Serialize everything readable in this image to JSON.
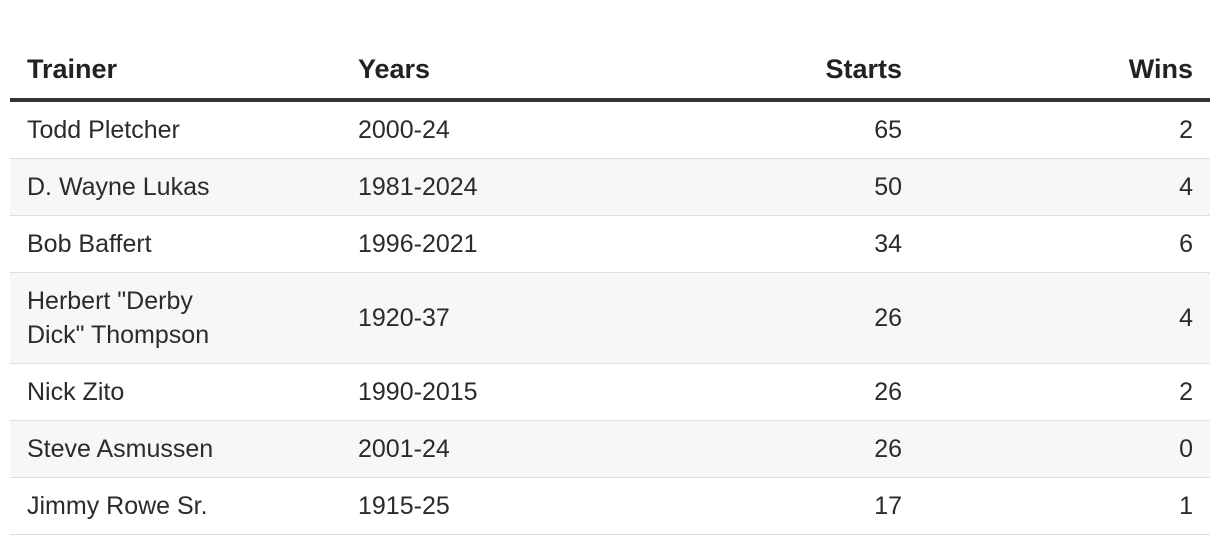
{
  "table": {
    "columns": [
      "Trainer",
      "Years",
      "Starts",
      "Wins"
    ],
    "rows": [
      [
        "Todd Pletcher",
        "2000-24",
        65,
        2
      ],
      [
        "D. Wayne Lukas",
        "1981-2024",
        50,
        4
      ],
      [
        "Bob Baffert",
        "1996-2021",
        34,
        6
      ],
      [
        "Herbert \"Derby Dick\" Thompson",
        "1920-37",
        26,
        4
      ],
      [
        "Nick Zito",
        "1990-2015",
        26,
        2
      ],
      [
        "Steve Asmussen",
        "2001-24",
        26,
        0
      ],
      [
        "Jimmy Rowe Sr.",
        "1915-25",
        17,
        1
      ]
    ]
  }
}
